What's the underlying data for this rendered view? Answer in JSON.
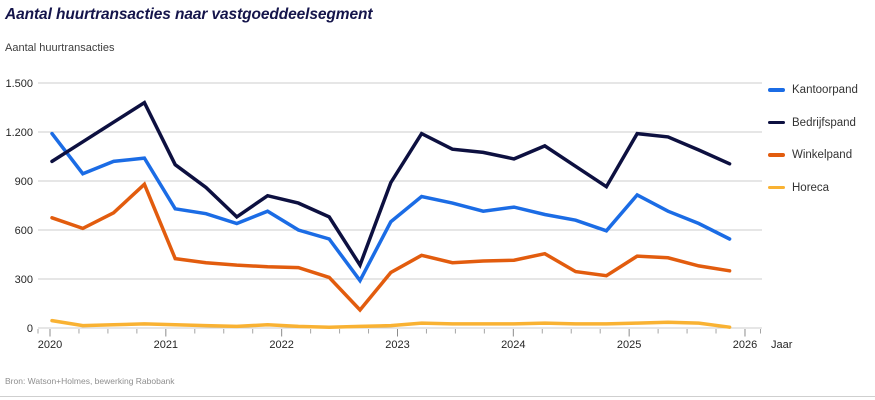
{
  "header": {
    "title": "Aantal huurtransacties naar vastgoeddeelsegment",
    "y_caption": "Aantal huurtransacties"
  },
  "footer": {
    "source": "Bron: Watson+Holmes, bewerking Rabobank"
  },
  "colors": {
    "title": "#15154b",
    "grid": "#cccccc",
    "axis_text": "#262626",
    "tick": "#8c8c8c",
    "kantoorpand": "#1b6ce5",
    "bedrijfspand": "#0d1040",
    "winkelpand": "#e25c0e",
    "horeca": "#f9b233"
  },
  "chart_data": {
    "type": "line",
    "title": "Aantal huurtransacties naar vastgoeddeelsegment",
    "ylabel": "Aantal huurtransacties",
    "xlabel": "Jaar",
    "ylim": [
      0,
      1500
    ],
    "grid": "horizontal",
    "legend_position": "right",
    "y_ticks": [
      0,
      300,
      600,
      900,
      1200,
      1500
    ],
    "y_tick_labels": [
      "0",
      "300",
      "600",
      "900",
      "1.200",
      "1.500"
    ],
    "x_ticks": [
      "2020",
      "2021",
      "2022",
      "2023",
      "2024",
      "2025",
      "2026"
    ],
    "categories": [
      "2020Q1",
      "2020Q2",
      "2020Q3",
      "2020Q4",
      "2021Q1",
      "2021Q2",
      "2021Q3",
      "2021Q4",
      "2022Q1",
      "2022Q2",
      "2022Q3",
      "2022Q4",
      "2023Q1",
      "2023Q2",
      "2023Q3",
      "2023Q4",
      "2024Q1",
      "2024Q2",
      "2024Q3",
      "2024Q4",
      "2025Q1",
      "2025Q2",
      "2025Q3"
    ],
    "series": [
      {
        "name": "Kantoorpand",
        "color": "#1b6ce5",
        "values": [
          1190,
          945,
          1020,
          1040,
          730,
          700,
          640,
          715,
          600,
          545,
          290,
          650,
          805,
          765,
          715,
          740,
          695,
          660,
          595,
          815,
          715,
          640,
          545
        ]
      },
      {
        "name": "Bedrijfspand",
        "color": "#0d1040",
        "values": [
          1020,
          1140,
          1260,
          1380,
          1000,
          860,
          680,
          810,
          765,
          680,
          385,
          890,
          1190,
          1095,
          1075,
          1035,
          1115,
          990,
          865,
          1190,
          1170,
          1090,
          1005
        ]
      },
      {
        "name": "Winkelpand",
        "color": "#e25c0e",
        "values": [
          675,
          610,
          705,
          880,
          425,
          400,
          385,
          375,
          370,
          310,
          110,
          340,
          445,
          400,
          410,
          415,
          455,
          345,
          320,
          440,
          430,
          380,
          350
        ]
      },
      {
        "name": "Horeca",
        "color": "#f9b233",
        "values": [
          45,
          15,
          20,
          25,
          20,
          15,
          10,
          20,
          10,
          5,
          10,
          15,
          30,
          25,
          25,
          25,
          30,
          25,
          25,
          30,
          35,
          30,
          5
        ]
      }
    ]
  }
}
